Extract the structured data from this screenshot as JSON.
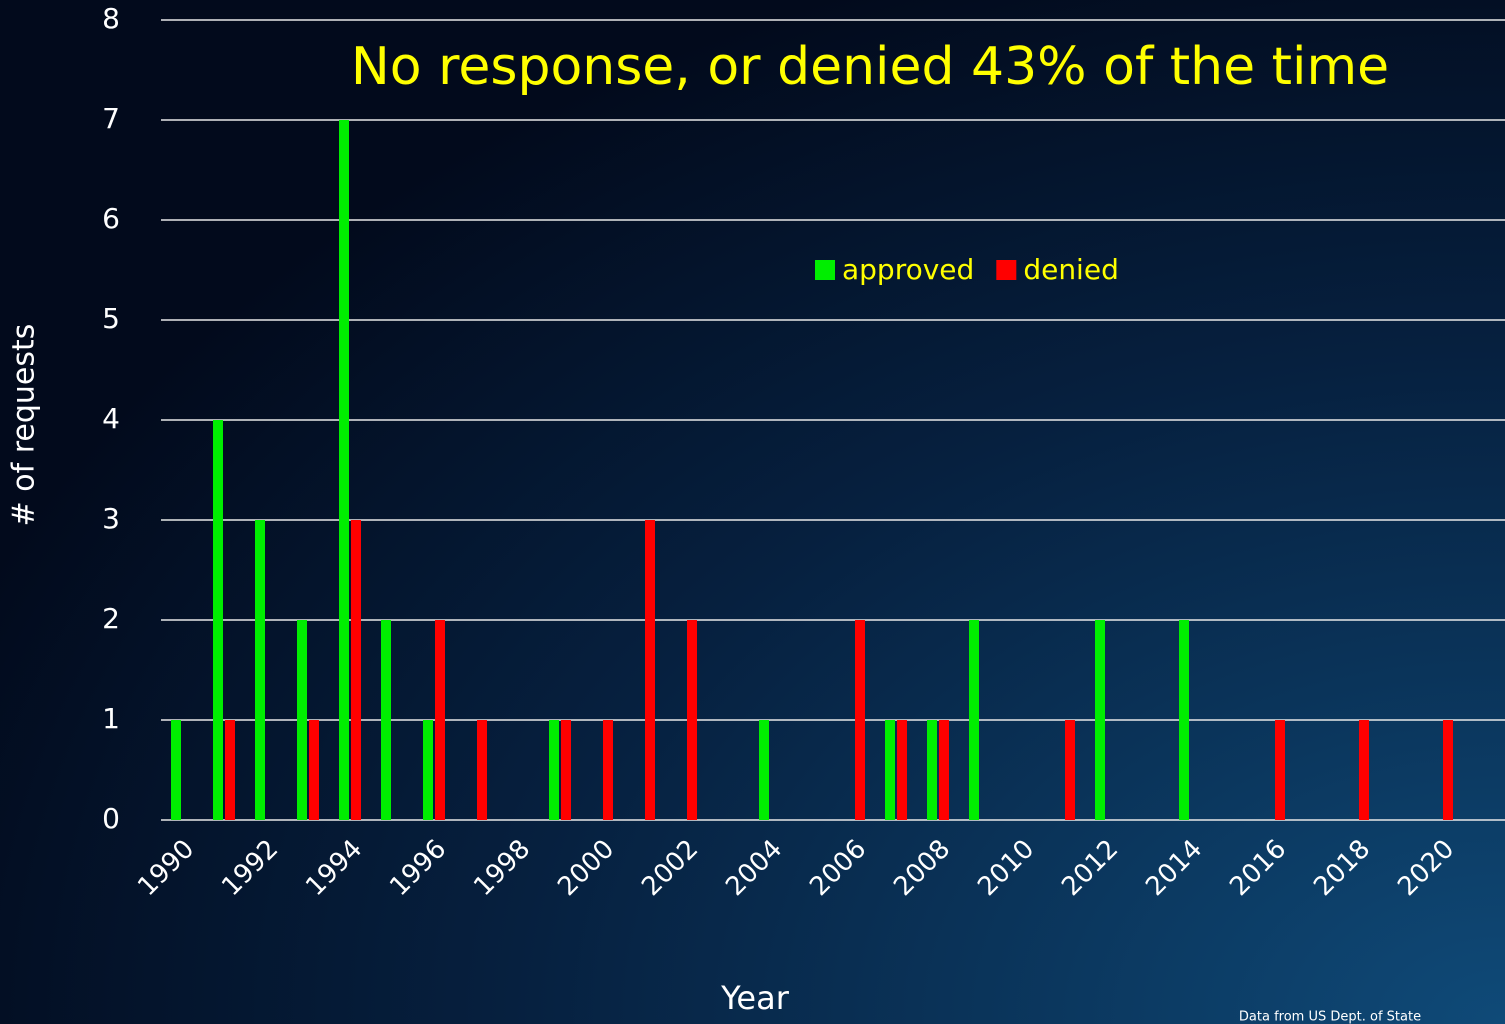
{
  "chart_data": {
    "type": "bar",
    "title": "No response, or denied 43% of the time",
    "x_label": "Year",
    "y_label": "# of requests",
    "note": "Data from US Dept. of State",
    "categories": [
      "1990",
      null,
      "1992",
      null,
      "1994",
      null,
      "1996",
      null,
      "1998",
      null,
      "2000",
      null,
      "2002",
      null,
      "2004",
      null,
      "2006",
      null,
      "2008",
      null,
      "2010",
      null,
      "2012",
      null,
      "2014",
      null,
      "2016",
      null,
      "2018",
      null,
      "2020",
      null
    ],
    "series": [
      {
        "name": "approved",
        "color": "#00ee00",
        "values": [
          1,
          4,
          3,
          2,
          7,
          2,
          1,
          0,
          0,
          1,
          0,
          0,
          0,
          0,
          1,
          0,
          0,
          1,
          1,
          2,
          0,
          0,
          2,
          0,
          2,
          0,
          0,
          0,
          0,
          0,
          0,
          0
        ]
      },
      {
        "name": "denied",
        "color": "#ff0000",
        "values": [
          0,
          1,
          0,
          1,
          3,
          0,
          2,
          1,
          0,
          1,
          1,
          3,
          2,
          0,
          0,
          0,
          2,
          1,
          1,
          0,
          0,
          1,
          0,
          0,
          0,
          0,
          1,
          0,
          1,
          0,
          1,
          0
        ]
      }
    ],
    "ylim": [
      0,
      8
    ],
    "yticks": [
      0,
      1,
      2,
      3,
      4,
      5,
      6,
      7,
      8
    ],
    "grid": true,
    "legend": "top"
  }
}
